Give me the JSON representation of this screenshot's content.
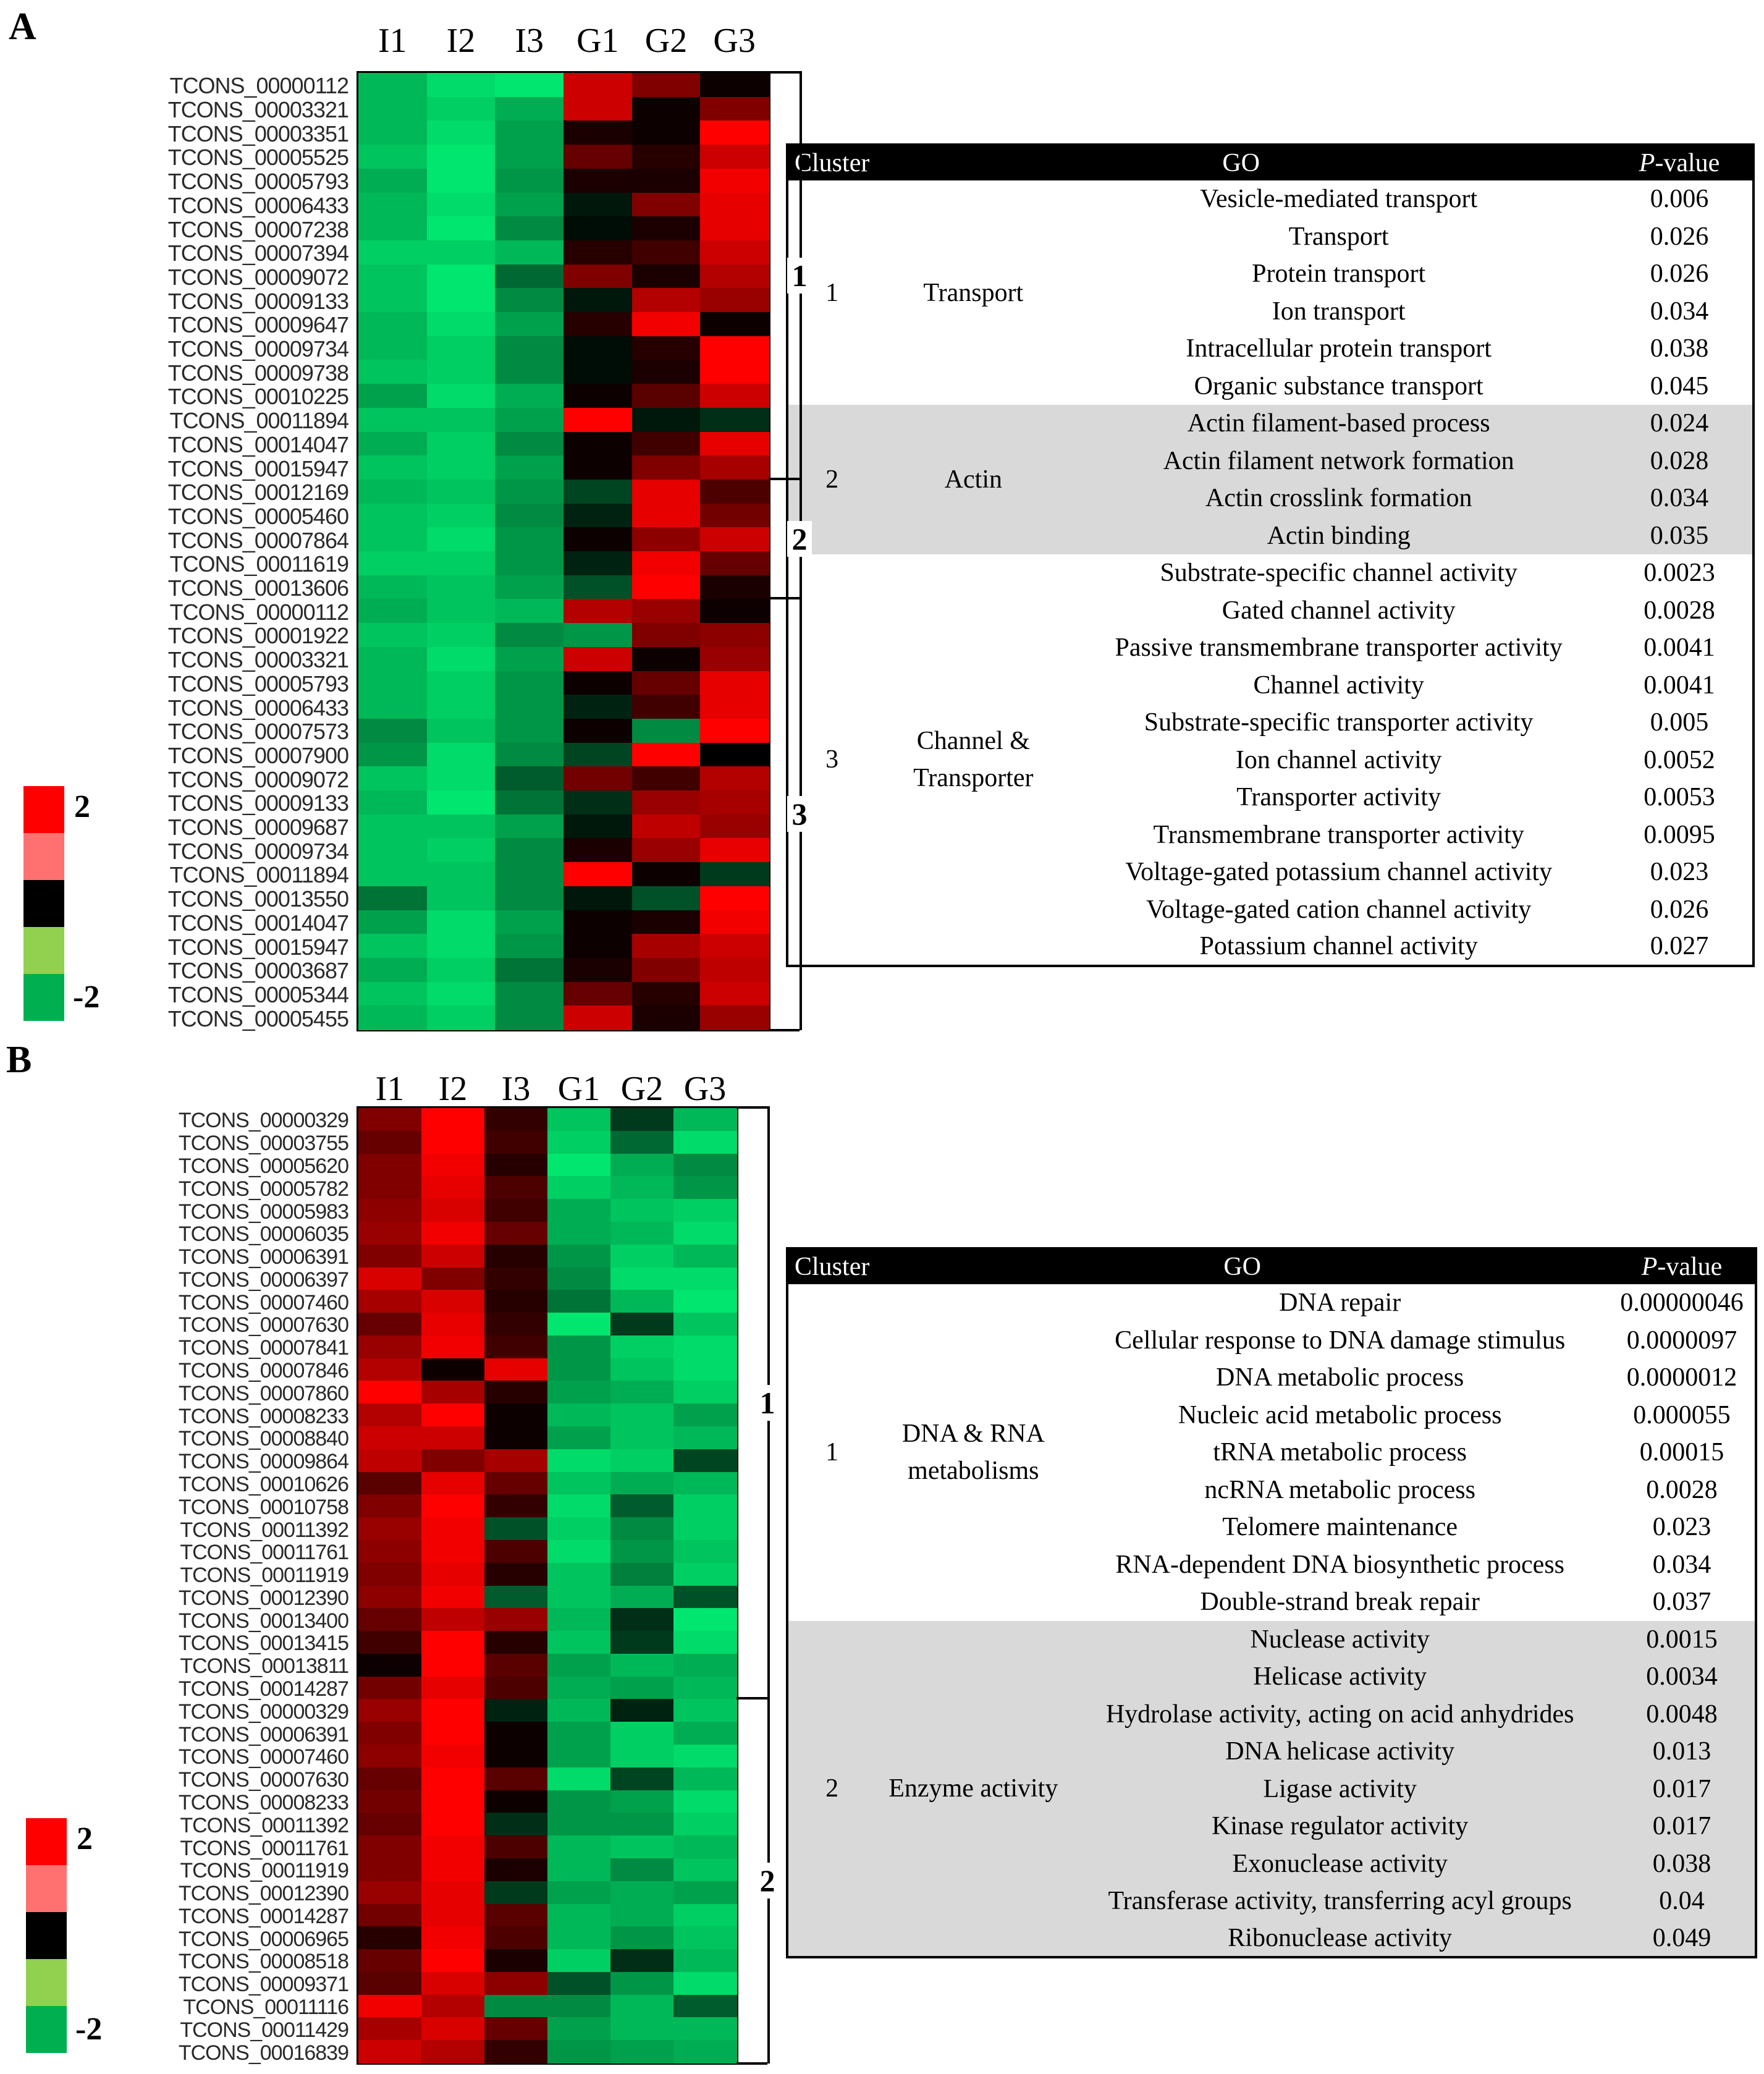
{
  "panel_labels": {
    "a": "A",
    "b": "B"
  },
  "colors": {
    "red": "#ff0000",
    "black": "#000000",
    "green": "#00b050"
  },
  "chart_data": [
    {
      "type": "heatmap",
      "panel": "A",
      "columns": [
        "I1",
        "I2",
        "I3",
        "G1",
        "G2",
        "G3"
      ],
      "rows": [
        "TCONS_00000112",
        "TCONS_00003321",
        "TCONS_00003351",
        "TCONS_00005525",
        "TCONS_00005793",
        "TCONS_00006433",
        "TCONS_00007238",
        "TCONS_00007394",
        "TCONS_00009072",
        "TCONS_00009133",
        "TCONS_00009647",
        "TCONS_00009734",
        "TCONS_00009738",
        "TCONS_00010225",
        "TCONS_00011894",
        "TCONS_00014047",
        "TCONS_00015947",
        "TCONS_00012169",
        "TCONS_00005460",
        "TCONS_00007864",
        "TCONS_00011619",
        "TCONS_00013606",
        "TCONS_00000112",
        "TCONS_00001922",
        "TCONS_00003321",
        "TCONS_00005793",
        "TCONS_00006433",
        "TCONS_00007573",
        "TCONS_00007900",
        "TCONS_00009072",
        "TCONS_00009133",
        "TCONS_00009687",
        "TCONS_00009734",
        "TCONS_00011894",
        "TCONS_00013550",
        "TCONS_00014047",
        "TCONS_00015947",
        "TCONS_00003687",
        "TCONS_00005344",
        "TCONS_00005455"
      ],
      "clusters": [
        {
          "label": "1",
          "rows": 17
        },
        {
          "label": "2",
          "rows": 5
        },
        {
          "label": "3",
          "rows": 18
        }
      ],
      "values": [
        [
          -1.6,
          -1.9,
          -2.0,
          1.6,
          1.0,
          0.1
        ],
        [
          -1.6,
          -1.8,
          -1.5,
          1.6,
          0.1,
          1.0
        ],
        [
          -1.6,
          -1.9,
          -1.4,
          0.2,
          0.1,
          2.0
        ],
        [
          -1.7,
          -2.0,
          -1.4,
          0.8,
          0.3,
          1.6
        ],
        [
          -1.5,
          -2.0,
          -1.3,
          0.2,
          0.2,
          1.9
        ],
        [
          -1.6,
          -1.9,
          -1.4,
          -0.2,
          1.0,
          1.8
        ],
        [
          -1.6,
          -2.0,
          -1.2,
          -0.1,
          0.2,
          1.8
        ],
        [
          -1.8,
          -1.8,
          -1.6,
          0.3,
          0.5,
          1.6
        ],
        [
          -1.7,
          -2.0,
          -0.9,
          1.0,
          0.2,
          1.4
        ],
        [
          -1.7,
          -2.0,
          -1.2,
          -0.2,
          1.4,
          1.2
        ],
        [
          -1.6,
          -1.9,
          -1.4,
          0.3,
          1.9,
          0.1
        ],
        [
          -1.6,
          -1.8,
          -1.2,
          -0.1,
          0.3,
          2.0
        ],
        [
          -1.7,
          -1.8,
          -1.2,
          -0.1,
          0.2,
          2.0
        ],
        [
          -1.4,
          -1.9,
          -1.5,
          0.1,
          0.7,
          1.6
        ],
        [
          -1.7,
          -1.7,
          -1.4,
          2.0,
          -0.2,
          -0.4
        ],
        [
          -1.5,
          -1.8,
          -1.2,
          0.1,
          0.5,
          1.8
        ],
        [
          -1.7,
          -1.8,
          -1.4,
          0.1,
          1.0,
          1.3
        ],
        [
          -1.6,
          -1.7,
          -1.3,
          -0.6,
          1.8,
          0.6
        ],
        [
          -1.7,
          -1.8,
          -1.2,
          -0.3,
          1.8,
          0.9
        ],
        [
          -1.7,
          -1.9,
          -1.3,
          0.1,
          1.1,
          1.6
        ],
        [
          -1.8,
          -1.8,
          -1.3,
          -0.3,
          1.9,
          0.8
        ],
        [
          -1.6,
          -1.7,
          -1.4,
          -0.7,
          2.0,
          0.2
        ],
        [
          -1.5,
          -1.7,
          -1.6,
          1.4,
          1.2,
          0.1
        ],
        [
          -1.7,
          -1.8,
          -1.2,
          -1.3,
          1.0,
          1.1
        ],
        [
          -1.6,
          -1.9,
          -1.4,
          1.6,
          0.1,
          1.2
        ],
        [
          -1.6,
          -1.8,
          -1.3,
          0.1,
          0.8,
          1.8
        ],
        [
          -1.6,
          -1.8,
          -1.3,
          -0.3,
          0.5,
          1.8
        ],
        [
          -1.2,
          -1.7,
          -1.3,
          0.1,
          -1.2,
          2.0
        ],
        [
          -1.3,
          -1.9,
          -1.2,
          -0.6,
          2.0,
          0.0
        ],
        [
          -1.7,
          -1.9,
          -0.8,
          0.9,
          0.5,
          1.4
        ],
        [
          -1.6,
          -2.0,
          -1.0,
          -0.4,
          1.2,
          1.3
        ],
        [
          -1.7,
          -1.7,
          -1.4,
          -0.2,
          1.5,
          1.2
        ],
        [
          -1.7,
          -1.8,
          -1.2,
          0.2,
          1.2,
          1.8
        ],
        [
          -1.7,
          -1.7,
          -1.2,
          2.0,
          0.1,
          -0.5
        ],
        [
          -1.0,
          -1.7,
          -1.2,
          -0.2,
          -0.7,
          2.0
        ],
        [
          -1.4,
          -1.9,
          -1.4,
          0.1,
          0.2,
          1.9
        ],
        [
          -1.7,
          -1.9,
          -1.3,
          0.1,
          1.3,
          1.6
        ],
        [
          -1.5,
          -1.8,
          -1.0,
          0.2,
          1.0,
          1.5
        ],
        [
          -1.7,
          -1.9,
          -1.2,
          0.8,
          0.3,
          1.6
        ],
        [
          -1.6,
          -1.8,
          -1.2,
          1.6,
          0.2,
          1.2
        ]
      ],
      "legend": {
        "max_label": "2",
        "min_label": "-2"
      }
    },
    {
      "type": "heatmap",
      "panel": "B",
      "columns": [
        "I1",
        "I2",
        "I3",
        "G1",
        "G2",
        "G3"
      ],
      "rows": [
        "TCONS_00000329",
        "TCONS_00003755",
        "TCONS_00005620",
        "TCONS_00005782",
        "TCONS_00005983",
        "TCONS_00006035",
        "TCONS_00006391",
        "TCONS_00006397",
        "TCONS_00007460",
        "TCONS_00007630",
        "TCONS_00007841",
        "TCONS_00007846",
        "TCONS_00007860",
        "TCONS_00008233",
        "TCONS_00008840",
        "TCONS_00009864",
        "TCONS_00010626",
        "TCONS_00010758",
        "TCONS_00011392",
        "TCONS_00011761",
        "TCONS_00011919",
        "TCONS_00012390",
        "TCONS_00013400",
        "TCONS_00013415",
        "TCONS_00013811",
        "TCONS_00014287",
        "TCONS_00000329",
        "TCONS_00006391",
        "TCONS_00007460",
        "TCONS_00007630",
        "TCONS_00008233",
        "TCONS_00011392",
        "TCONS_00011761",
        "TCONS_00011919",
        "TCONS_00012390",
        "TCONS_00014287",
        "TCONS_00006965",
        "TCONS_00008518",
        "TCONS_00009371",
        "TCONS_00011116",
        "TCONS_00011429",
        "TCONS_00016839"
      ],
      "clusters": [
        {
          "label": "1",
          "rows": 26
        },
        {
          "label": "2",
          "rows": 16
        }
      ],
      "values": [
        [
          1.0,
          2.0,
          0.4,
          -1.7,
          -0.5,
          -1.6
        ],
        [
          0.8,
          2.0,
          0.5,
          -1.8,
          -0.9,
          -1.9
        ],
        [
          1.0,
          1.9,
          0.3,
          -2.0,
          -1.5,
          -1.2
        ],
        [
          1.0,
          1.8,
          0.6,
          -1.8,
          -1.6,
          -1.3
        ],
        [
          1.1,
          1.7,
          0.5,
          -1.5,
          -1.7,
          -1.8
        ],
        [
          1.2,
          1.9,
          0.8,
          -1.5,
          -1.6,
          -1.9
        ],
        [
          1.0,
          1.6,
          0.3,
          -1.3,
          -1.8,
          -1.6
        ],
        [
          1.7,
          1.0,
          0.4,
          -1.2,
          -1.9,
          -1.9
        ],
        [
          1.3,
          1.7,
          0.3,
          -1.0,
          -1.6,
          -2.0
        ],
        [
          0.8,
          1.8,
          0.4,
          -2.0,
          -0.5,
          -1.7
        ],
        [
          1.2,
          1.9,
          0.5,
          -1.3,
          -1.8,
          -1.9
        ],
        [
          1.4,
          0.1,
          1.8,
          -1.3,
          -1.7,
          -1.9
        ],
        [
          2.0,
          1.3,
          0.3,
          -1.4,
          -1.5,
          -1.8
        ],
        [
          1.4,
          2.0,
          0.1,
          -1.6,
          -1.7,
          -1.4
        ],
        [
          1.6,
          1.6,
          0.1,
          -1.4,
          -1.7,
          -1.6
        ],
        [
          1.5,
          1.0,
          1.3,
          -1.9,
          -1.8,
          -0.6
        ],
        [
          0.7,
          1.8,
          0.8,
          -1.7,
          -1.5,
          -1.6
        ],
        [
          1.0,
          2.0,
          0.4,
          -1.9,
          -0.8,
          -1.8
        ],
        [
          1.2,
          1.9,
          -0.7,
          -1.8,
          -1.2,
          -1.8
        ],
        [
          1.1,
          1.9,
          0.6,
          -1.9,
          -1.3,
          -1.7
        ],
        [
          1.0,
          1.8,
          0.3,
          -1.7,
          -1.1,
          -1.8
        ],
        [
          1.1,
          1.9,
          -0.8,
          -1.7,
          -1.5,
          -0.7
        ],
        [
          0.8,
          1.5,
          1.2,
          -1.6,
          -0.4,
          -2.0
        ],
        [
          0.5,
          2.0,
          0.3,
          -1.7,
          -0.5,
          -1.9
        ],
        [
          0.1,
          2.0,
          0.7,
          -1.4,
          -1.6,
          -1.5
        ],
        [
          0.9,
          1.8,
          0.6,
          -1.5,
          -1.4,
          -1.6
        ],
        [
          1.2,
          2.0,
          -0.3,
          -1.6,
          -0.3,
          -1.7
        ],
        [
          1.0,
          2.0,
          0.1,
          -1.4,
          -1.8,
          -1.5
        ],
        [
          1.1,
          1.9,
          0.1,
          -1.4,
          -1.8,
          -1.9
        ],
        [
          0.8,
          2.0,
          0.7,
          -1.9,
          -0.6,
          -1.6
        ],
        [
          0.9,
          2.0,
          0.1,
          -1.3,
          -1.4,
          -1.9
        ],
        [
          0.8,
          2.0,
          -0.4,
          -1.3,
          -1.3,
          -1.8
        ],
        [
          1.0,
          1.9,
          0.6,
          -1.6,
          -1.7,
          -1.6
        ],
        [
          1.0,
          1.9,
          0.2,
          -1.6,
          -1.2,
          -1.7
        ],
        [
          1.2,
          1.8,
          -0.5,
          -1.4,
          -1.5,
          -1.4
        ],
        [
          0.9,
          1.8,
          0.7,
          -1.6,
          -1.5,
          -1.8
        ],
        [
          0.3,
          1.9,
          0.6,
          -1.6,
          -1.3,
          -1.7
        ],
        [
          0.8,
          2.0,
          0.2,
          -1.8,
          -0.4,
          -1.6
        ],
        [
          0.7,
          1.7,
          1.1,
          -0.7,
          -1.3,
          -1.9
        ],
        [
          1.9,
          1.4,
          -1.2,
          -1.2,
          -1.6,
          -0.8
        ],
        [
          1.3,
          1.7,
          0.8,
          -1.4,
          -1.6,
          -1.6
        ],
        [
          1.6,
          1.4,
          0.4,
          -1.3,
          -1.4,
          -1.5
        ]
      ],
      "legend": {
        "max_label": "2",
        "min_label": "-2"
      }
    },
    {
      "type": "table",
      "panel": "A",
      "headers": {
        "cluster": "Cluster",
        "go": "GO",
        "p_italic": "P",
        "p_rest": "-value"
      },
      "groups": [
        {
          "cluster": "1",
          "name": [
            "Transport"
          ],
          "shaded": false,
          "terms": [
            [
              "Vesicle-mediated transport",
              "0.006"
            ],
            [
              "Transport",
              "0.026"
            ],
            [
              "Protein transport",
              "0.026"
            ],
            [
              "Ion transport",
              "0.034"
            ],
            [
              "Intracellular protein transport",
              "0.038"
            ],
            [
              "Organic substance transport",
              "0.045"
            ]
          ]
        },
        {
          "cluster": "2",
          "name": [
            "Actin"
          ],
          "shaded": true,
          "terms": [
            [
              "Actin filament-based process",
              "0.024"
            ],
            [
              "Actin filament network formation",
              "0.028"
            ],
            [
              "Actin crosslink formation",
              "0.034"
            ],
            [
              "Actin binding",
              "0.035"
            ]
          ]
        },
        {
          "cluster": "3",
          "name": [
            "Channel &",
            "Transporter"
          ],
          "shaded": false,
          "terms": [
            [
              "Substrate-specific channel activity",
              "0.0023"
            ],
            [
              "Gated channel activity",
              "0.0028"
            ],
            [
              "Passive transmembrane transporter activity",
              "0.0041"
            ],
            [
              "Channel activity",
              "0.0041"
            ],
            [
              "Substrate-specific transporter activity",
              "0.005"
            ],
            [
              "Ion channel activity",
              "0.0052"
            ],
            [
              "Transporter activity",
              "0.0053"
            ],
            [
              "Transmembrane transporter activity",
              "0.0095"
            ],
            [
              "Voltage-gated potassium channel activity",
              "0.023"
            ],
            [
              "Voltage-gated cation channel activity",
              "0.026"
            ],
            [
              "Potassium channel activity",
              "0.027"
            ]
          ]
        }
      ]
    },
    {
      "type": "table",
      "panel": "B",
      "headers": {
        "cluster": "Cluster",
        "go": "GO",
        "p_italic": "P",
        "p_rest": "-value"
      },
      "groups": [
        {
          "cluster": "1",
          "name": [
            "DNA & RNA",
            "metabolisms"
          ],
          "shaded": false,
          "terms": [
            [
              "DNA repair",
              "0.00000046"
            ],
            [
              "Cellular response to DNA damage stimulus",
              "0.0000097"
            ],
            [
              "DNA metabolic process",
              "0.0000012"
            ],
            [
              "Nucleic acid metabolic process",
              "0.000055"
            ],
            [
              "tRNA metabolic process",
              "0.00015"
            ],
            [
              "ncRNA metabolic process",
              "0.0028"
            ],
            [
              "Telomere maintenance",
              "0.023"
            ],
            [
              "RNA-dependent DNA biosynthetic process",
              "0.034"
            ],
            [
              "Double-strand break repair",
              "0.037"
            ]
          ]
        },
        {
          "cluster": "2",
          "name": [
            "Enzyme activity"
          ],
          "shaded": true,
          "terms": [
            [
              "Nuclease activity",
              "0.0015"
            ],
            [
              "Helicase activity",
              "0.0034"
            ],
            [
              "Hydrolase activity, acting on acid anhydrides",
              "0.0048"
            ],
            [
              "DNA helicase activity",
              "0.013"
            ],
            [
              "Ligase activity",
              "0.017"
            ],
            [
              "Kinase regulator activity",
              "0.017"
            ],
            [
              "Exonuclease activity",
              "0.038"
            ],
            [
              "Transferase activity, transferring acyl groups",
              "0.04"
            ],
            [
              "Ribonuclease activity",
              "0.049"
            ]
          ]
        }
      ]
    }
  ]
}
